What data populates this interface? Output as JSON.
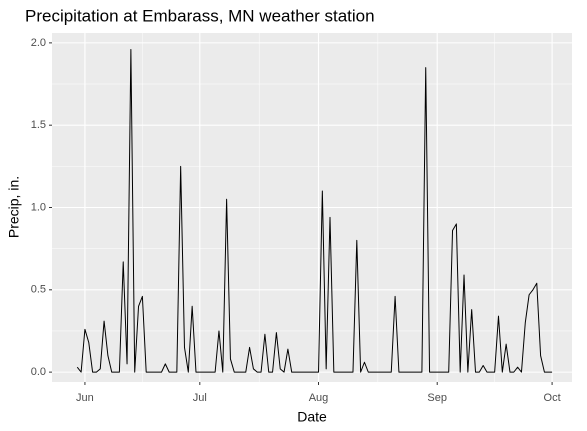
{
  "chart_data": {
    "type": "line",
    "title": "Precipitation at Embarass, MN weather station",
    "xlabel": "Date",
    "ylabel": "Precip, in.",
    "x": [
      150,
      151,
      152,
      153,
      154,
      155,
      156,
      157,
      158,
      159,
      160,
      161,
      162,
      163,
      164,
      165,
      166,
      167,
      168,
      169,
      170,
      171,
      172,
      173,
      174,
      175,
      176,
      177,
      178,
      179,
      180,
      181,
      182,
      183,
      184,
      185,
      186,
      187,
      188,
      189,
      190,
      191,
      192,
      193,
      194,
      195,
      196,
      197,
      198,
      199,
      200,
      201,
      202,
      203,
      204,
      205,
      206,
      207,
      208,
      209,
      210,
      211,
      212,
      213,
      214,
      215,
      216,
      217,
      218,
      219,
      220,
      221,
      222,
      223,
      224,
      225,
      226,
      227,
      228,
      229,
      230,
      231,
      232,
      233,
      234,
      235,
      236,
      237,
      238,
      239,
      240,
      241,
      242,
      243,
      244,
      245,
      246,
      247,
      248,
      249,
      250,
      251,
      252,
      253,
      254,
      255,
      256,
      257,
      258,
      259,
      260,
      261,
      262,
      263,
      264,
      265,
      266,
      267,
      268,
      269,
      270,
      271,
      272,
      273,
      274
    ],
    "values": [
      0.03,
      0,
      0.26,
      0.18,
      0,
      0,
      0.02,
      0.31,
      0.1,
      0,
      0,
      0,
      0.67,
      0.05,
      1.96,
      0,
      0.4,
      0.46,
      0,
      0,
      0,
      0,
      0,
      0.05,
      0,
      0,
      0,
      1.25,
      0.15,
      0,
      0.4,
      0,
      0,
      0,
      0,
      0,
      0,
      0.25,
      0,
      1.05,
      0.08,
      0,
      0,
      0,
      0,
      0.15,
      0.02,
      0,
      0,
      0.23,
      0,
      0,
      0.24,
      0.02,
      0,
      0.14,
      0,
      0,
      0,
      0,
      0,
      0,
      0,
      0,
      1.1,
      0.02,
      0.94,
      0,
      0,
      0,
      0,
      0,
      0,
      0.8,
      0,
      0.06,
      0,
      0,
      0,
      0,
      0,
      0,
      0,
      0.46,
      0,
      0,
      0,
      0,
      0,
      0,
      0,
      1.85,
      0,
      0,
      0,
      0,
      0,
      0,
      0.86,
      0.9,
      0,
      0.59,
      0,
      0.38,
      0,
      0,
      0.04,
      0,
      0,
      0,
      0.34,
      0,
      0.17,
      0,
      0,
      0.03,
      0,
      0.3,
      0.47,
      0.5,
      0.54,
      0.1,
      0,
      0,
      0
    ],
    "color": "#000000",
    "xlim": [
      143.4,
      279.2
    ],
    "xticks": [
      {
        "value": 152,
        "label": "Jun"
      },
      {
        "value": 182,
        "label": "Jul"
      },
      {
        "value": 213,
        "label": "Aug"
      },
      {
        "value": 244,
        "label": "Sep"
      },
      {
        "value": 274,
        "label": "Oct"
      }
    ],
    "ylim": [
      -0.06,
      2.06
    ],
    "yticks": [
      {
        "value": 0,
        "label": "0.0"
      },
      0.5,
      {
        "value": 1,
        "label": "1.0"
      },
      1.5,
      {
        "value": 2,
        "label": "2.0"
      }
    ],
    "grid": true
  }
}
